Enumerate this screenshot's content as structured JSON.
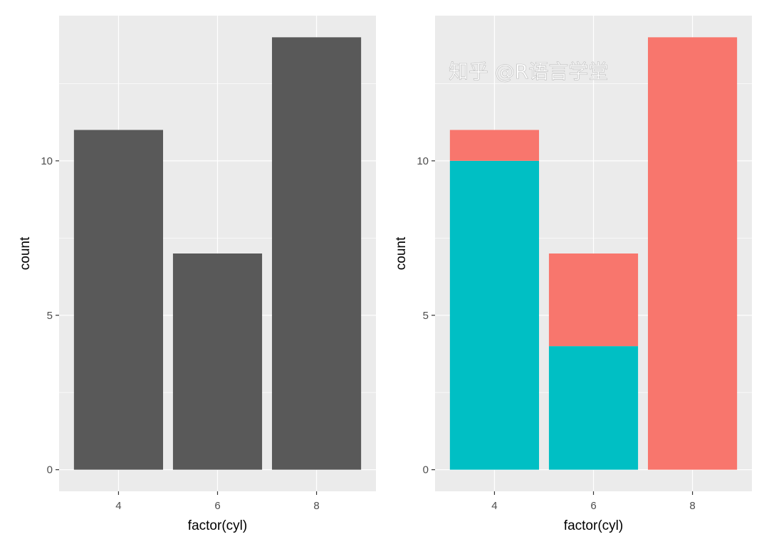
{
  "chart_data": [
    {
      "type": "bar",
      "categories": [
        "4",
        "6",
        "8"
      ],
      "values": [
        11,
        7,
        14
      ],
      "colors": [
        "#595959"
      ],
      "xlabel": "factor(cyl)",
      "ylabel": "count",
      "yticks": [
        0,
        5,
        10
      ],
      "ylim": [
        -0.7,
        14.7
      ],
      "grid": true,
      "panel_background": "#EBEBEB"
    },
    {
      "type": "bar",
      "stacked": true,
      "categories": [
        "4",
        "6",
        "8"
      ],
      "series": [
        {
          "values": [
            10,
            4,
            0
          ],
          "color": "#00BFC4"
        },
        {
          "values": [
            1,
            3,
            14
          ],
          "color": "#F8766D"
        }
      ],
      "xlabel": "factor(cyl)",
      "ylabel": "count",
      "yticks": [
        0,
        5,
        10
      ],
      "ylim": [
        -0.7,
        14.7
      ],
      "grid": true,
      "panel_background": "#EBEBEB"
    }
  ],
  "watermark": "知乎 @R语言学堂"
}
